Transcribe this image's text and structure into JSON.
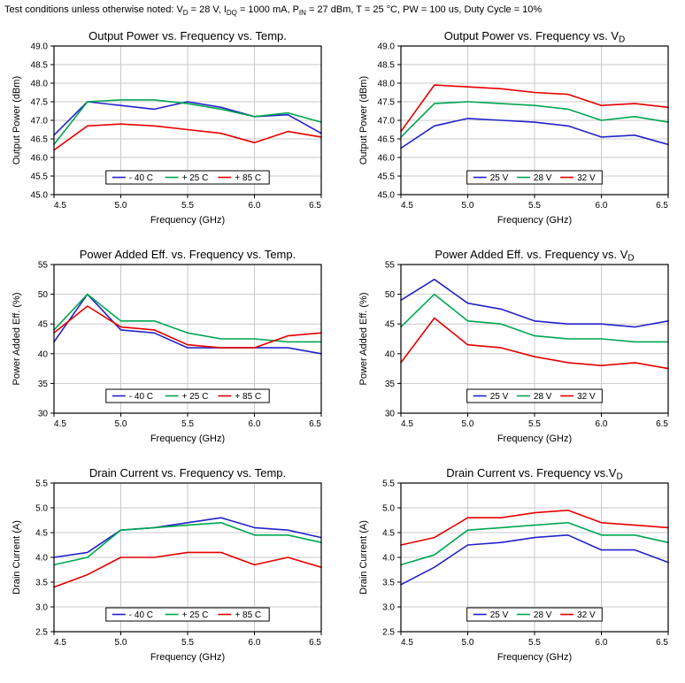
{
  "header": {
    "parts": [
      {
        "t": "Test conditions unless otherwise noted: V"
      },
      {
        "t": "D",
        "sub": true
      },
      {
        "t": " = 28 V, I"
      },
      {
        "t": "DQ",
        "sub": true
      },
      {
        "t": " = 1000 mA, P"
      },
      {
        "t": "IN",
        "sub": true
      },
      {
        "t": " = 27 dBm, T = 25 °C, PW = 100 us, Duty Cycle = 10%"
      }
    ]
  },
  "colors": {
    "blue": "#2222cc",
    "green": "#00a650",
    "red": "#e60000",
    "grid": "#c9c9c9",
    "axis": "#000000"
  },
  "chart_data": [
    {
      "type": "line",
      "title_main": "Output Power vs. Frequency vs. Temp.",
      "title_sub": "",
      "xlabel": "Frequency (GHz)",
      "ylabel": "Output Power (dBm)",
      "xlim": [
        4.5,
        6.5
      ],
      "ylim": [
        45.0,
        49.0
      ],
      "xticks": [
        4.5,
        5.0,
        5.5,
        6.0,
        6.5
      ],
      "yticks": [
        45.0,
        45.5,
        46.0,
        46.5,
        47.0,
        47.5,
        48.0,
        48.5,
        49.0
      ],
      "xtick_decimals": 1,
      "ytick_decimals": 1,
      "grid": true,
      "x": [
        4.5,
        4.75,
        5.0,
        5.25,
        5.5,
        5.75,
        6.0,
        6.25,
        6.5
      ],
      "series": [
        {
          "name": "- 40 C",
          "color": "blue",
          "values": [
            46.6,
            47.5,
            47.4,
            47.3,
            47.5,
            47.35,
            47.1,
            47.15,
            46.65
          ]
        },
        {
          "name": "+ 25 C",
          "color": "green",
          "values": [
            46.35,
            47.5,
            47.55,
            47.55,
            47.45,
            47.3,
            47.1,
            47.2,
            46.95
          ]
        },
        {
          "name": "+ 85 C",
          "color": "red",
          "values": [
            46.2,
            46.85,
            46.9,
            46.85,
            46.75,
            46.65,
            46.4,
            46.7,
            46.55
          ]
        }
      ]
    },
    {
      "type": "line",
      "title_main": "Output Power vs. Frequency vs. V",
      "title_sub": "D",
      "xlabel": "Frequency (GHz)",
      "ylabel": "Output Power (dBm)",
      "xlim": [
        4.5,
        6.5
      ],
      "ylim": [
        45.0,
        49.0
      ],
      "xticks": [
        4.5,
        5.0,
        5.5,
        6.0,
        6.5
      ],
      "yticks": [
        45.0,
        45.5,
        46.0,
        46.5,
        47.0,
        47.5,
        48.0,
        48.5,
        49.0
      ],
      "xtick_decimals": 1,
      "ytick_decimals": 1,
      "grid": true,
      "x": [
        4.5,
        4.75,
        5.0,
        5.25,
        5.5,
        5.75,
        6.0,
        6.25,
        6.5
      ],
      "series": [
        {
          "name": "25 V",
          "color": "blue",
          "values": [
            46.25,
            46.85,
            47.05,
            47.0,
            46.95,
            46.85,
            46.55,
            46.6,
            46.35
          ]
        },
        {
          "name": "28 V",
          "color": "green",
          "values": [
            46.55,
            47.45,
            47.5,
            47.45,
            47.4,
            47.3,
            47.0,
            47.1,
            46.95
          ]
        },
        {
          "name": "32 V",
          "color": "red",
          "values": [
            46.7,
            47.95,
            47.9,
            47.85,
            47.75,
            47.7,
            47.4,
            47.45,
            47.35
          ]
        }
      ]
    },
    {
      "type": "line",
      "title_main": "Power Added Eff. vs. Frequency vs. Temp.",
      "title_sub": "",
      "xlabel": "Frequency (GHz)",
      "ylabel": "Power Added Eff. (%)",
      "xlim": [
        4.5,
        6.5
      ],
      "ylim": [
        30,
        55
      ],
      "xticks": [
        4.5,
        5.0,
        5.5,
        6.0,
        6.5
      ],
      "yticks": [
        30,
        35,
        40,
        45,
        50,
        55
      ],
      "xtick_decimals": 1,
      "ytick_decimals": 0,
      "grid": true,
      "x": [
        4.5,
        4.75,
        5.0,
        5.25,
        5.5,
        5.75,
        6.0,
        6.25,
        6.5
      ],
      "series": [
        {
          "name": "- 40 C",
          "color": "blue",
          "values": [
            42,
            50,
            44,
            43.5,
            41,
            41,
            41,
            41,
            40
          ]
        },
        {
          "name": "+ 25 C",
          "color": "green",
          "values": [
            44,
            50,
            45.5,
            45.5,
            43.5,
            42.5,
            42.5,
            42,
            42
          ]
        },
        {
          "name": "+ 85 C",
          "color": "red",
          "values": [
            43.5,
            48,
            44.5,
            44,
            41.5,
            41,
            41,
            43,
            43.5
          ]
        }
      ]
    },
    {
      "type": "line",
      "title_main": "Power Added Eff.  vs. Frequency vs. V",
      "title_sub": "D",
      "xlabel": "Frequency (GHz)",
      "ylabel": "Power Added Eff. (%)",
      "xlim": [
        4.5,
        6.5
      ],
      "ylim": [
        30,
        55
      ],
      "xticks": [
        4.5,
        5.0,
        5.5,
        6.0,
        6.5
      ],
      "yticks": [
        30,
        35,
        40,
        45,
        50,
        55
      ],
      "xtick_decimals": 1,
      "ytick_decimals": 0,
      "grid": true,
      "x": [
        4.5,
        4.75,
        5.0,
        5.25,
        5.5,
        5.75,
        6.0,
        6.25,
        6.5
      ],
      "series": [
        {
          "name": "25 V",
          "color": "blue",
          "values": [
            49,
            52.5,
            48.5,
            47.5,
            45.5,
            45,
            45,
            44.5,
            45.5
          ]
        },
        {
          "name": "28 V",
          "color": "green",
          "values": [
            44.5,
            50,
            45.5,
            45,
            43,
            42.5,
            42.5,
            42,
            42
          ]
        },
        {
          "name": "32 V",
          "color": "red",
          "values": [
            38.5,
            46,
            41.5,
            41,
            39.5,
            38.5,
            38,
            38.5,
            37.5
          ]
        }
      ]
    },
    {
      "type": "line",
      "title_main": "Drain Current vs. Frequency vs. Temp.",
      "title_sub": "",
      "xlabel": "Frequency (GHz)",
      "ylabel": "Drain Current (A)",
      "xlim": [
        4.5,
        6.5
      ],
      "ylim": [
        2.5,
        5.5
      ],
      "xticks": [
        4.5,
        5.0,
        5.5,
        6.0,
        6.5
      ],
      "yticks": [
        2.5,
        3.0,
        3.5,
        4.0,
        4.5,
        5.0,
        5.5
      ],
      "xtick_decimals": 1,
      "ytick_decimals": 1,
      "grid": true,
      "x": [
        4.5,
        4.75,
        5.0,
        5.25,
        5.5,
        5.75,
        6.0,
        6.25,
        6.5
      ],
      "series": [
        {
          "name": "- 40 C",
          "color": "blue",
          "values": [
            4.0,
            4.1,
            4.55,
            4.6,
            4.7,
            4.8,
            4.6,
            4.55,
            4.4
          ]
        },
        {
          "name": "+ 25 C",
          "color": "green",
          "values": [
            3.85,
            4.0,
            4.55,
            4.6,
            4.65,
            4.7,
            4.45,
            4.45,
            4.3
          ]
        },
        {
          "name": "+ 85 C",
          "color": "red",
          "values": [
            3.4,
            3.65,
            4.0,
            4.0,
            4.1,
            4.1,
            3.85,
            4.0,
            3.8
          ]
        }
      ]
    },
    {
      "type": "line",
      "title_main": "Drain Current vs. Frequency vs.V",
      "title_sub": "D",
      "xlabel": "Frequency (GHz)",
      "ylabel": "Drain Current (A)",
      "xlim": [
        4.5,
        6.5
      ],
      "ylim": [
        2.5,
        5.5
      ],
      "xticks": [
        4.5,
        5.0,
        5.5,
        6.0,
        6.5
      ],
      "yticks": [
        2.5,
        3.0,
        3.5,
        4.0,
        4.5,
        5.0,
        5.5
      ],
      "xtick_decimals": 1,
      "ytick_decimals": 1,
      "grid": true,
      "x": [
        4.5,
        4.75,
        5.0,
        5.25,
        5.5,
        5.75,
        6.0,
        6.25,
        6.5
      ],
      "series": [
        {
          "name": "25 V",
          "color": "blue",
          "values": [
            3.45,
            3.8,
            4.25,
            4.3,
            4.4,
            4.45,
            4.15,
            4.15,
            3.9
          ]
        },
        {
          "name": "28 V",
          "color": "green",
          "values": [
            3.85,
            4.05,
            4.55,
            4.6,
            4.65,
            4.7,
            4.45,
            4.45,
            4.3
          ]
        },
        {
          "name": "32 V",
          "color": "red",
          "values": [
            4.25,
            4.4,
            4.8,
            4.8,
            4.9,
            4.95,
            4.7,
            4.65,
            4.6
          ]
        }
      ]
    }
  ]
}
